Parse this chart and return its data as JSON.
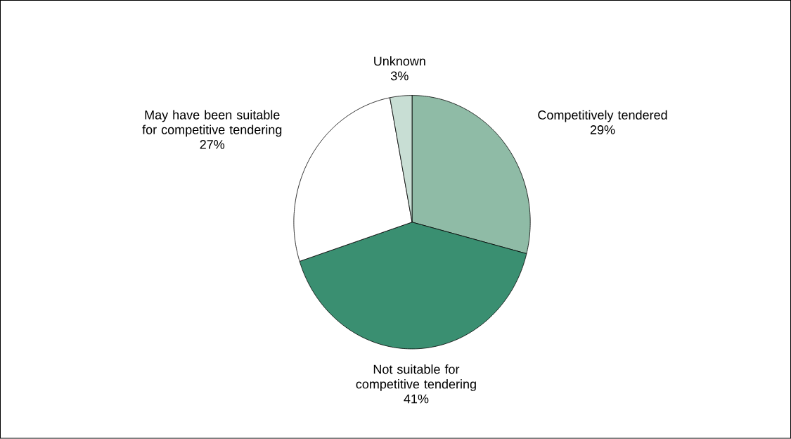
{
  "chart_data": {
    "type": "pie",
    "categories": [
      "Competitively tendered",
      "Not suitable for competitive tendering",
      "May have been suitable for competitive tendering",
      "Unknown"
    ],
    "values": [
      29,
      41,
      27,
      3
    ],
    "value_labels": [
      "29%",
      "41%",
      "27%",
      "3%"
    ],
    "colors": [
      "#8fbba6",
      "#3a8f71",
      "#ffffff",
      "#c8ded4"
    ]
  }
}
